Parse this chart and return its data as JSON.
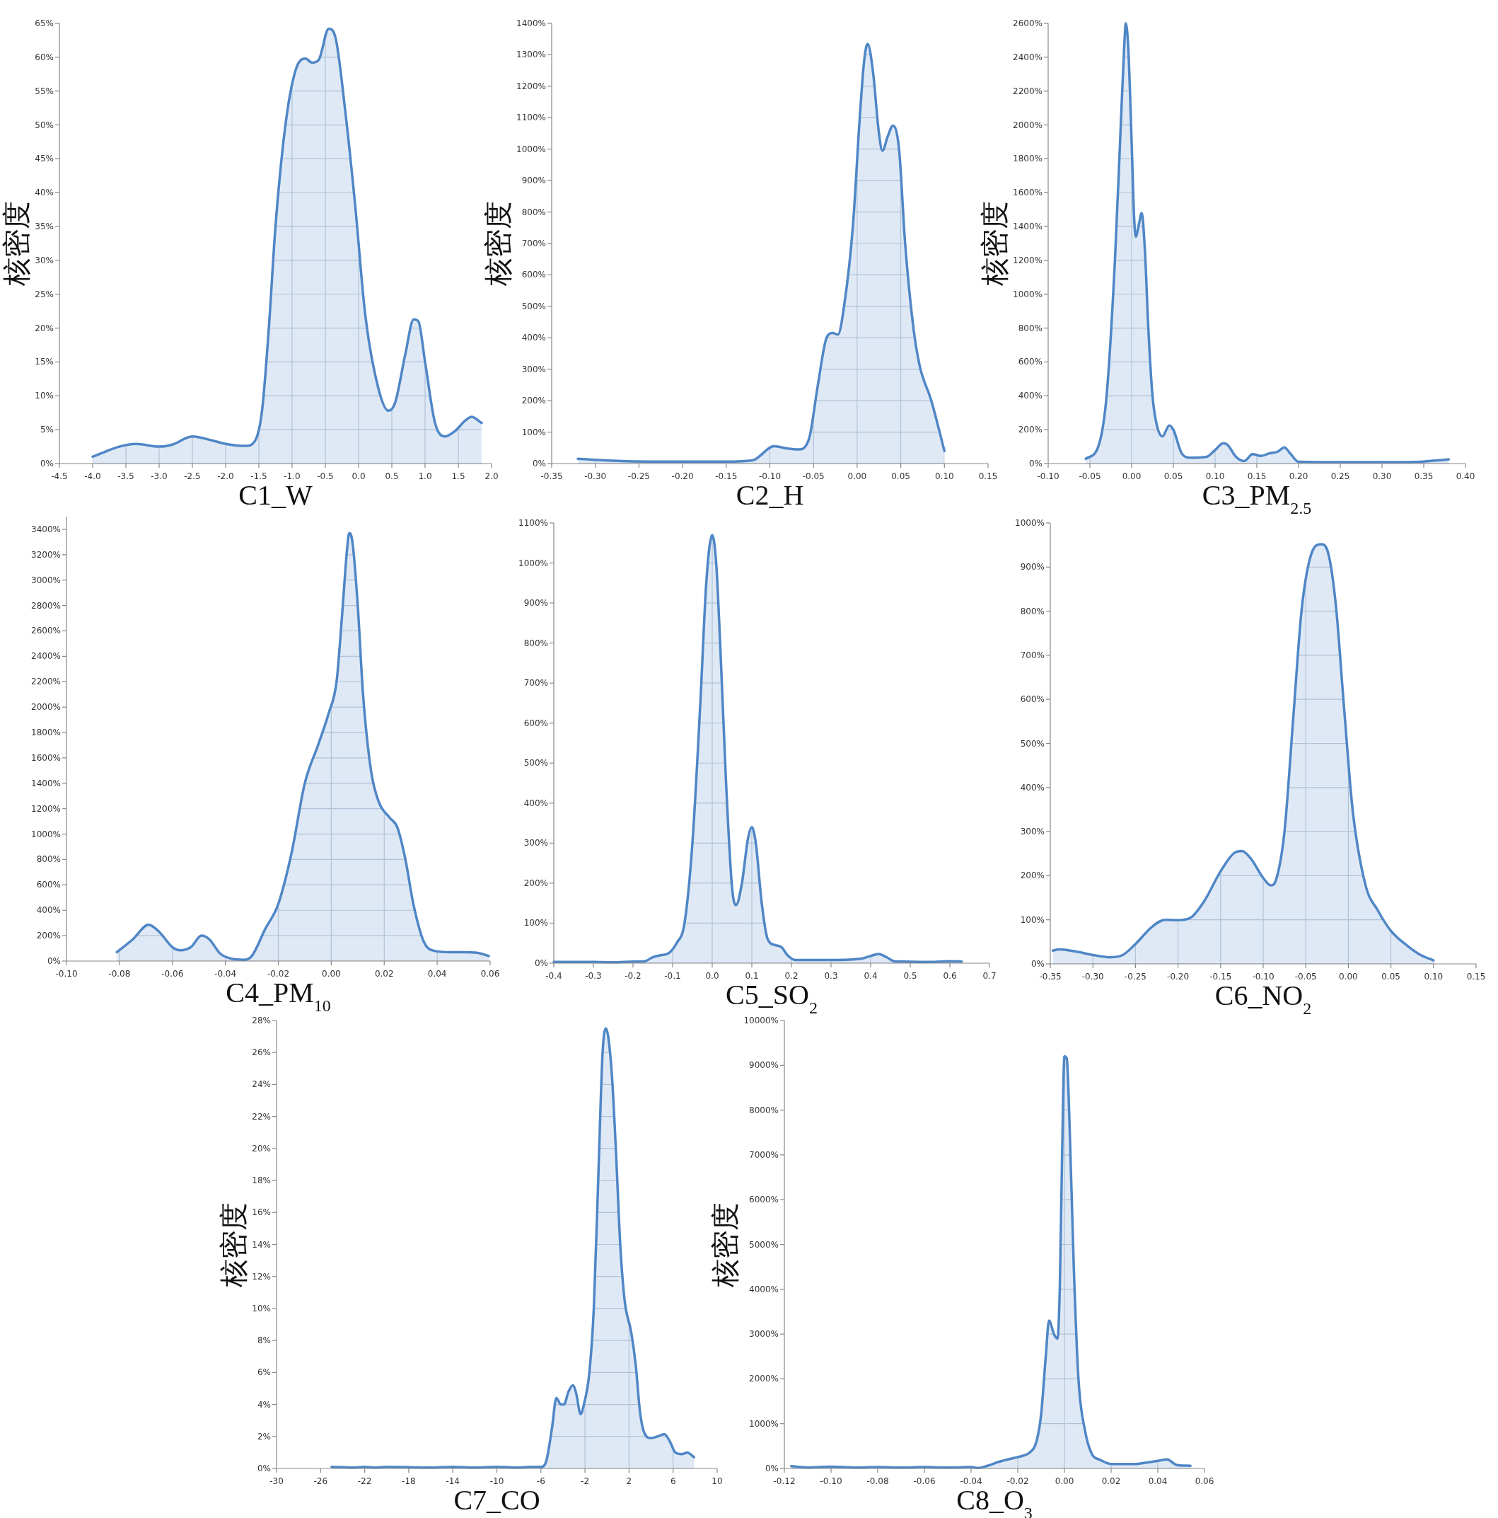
{
  "chart_data": [
    {
      "type": "area",
      "xlabel": "C1_W",
      "ylabel": "核密度",
      "grid": true,
      "xlim": [
        -4.5,
        2.0
      ],
      "ylim": [
        0,
        65
      ],
      "xticks": [
        -4.5,
        {
          "value": -4.0,
          "label": "-4.0"
        },
        -3.5,
        {
          "value": -3.0,
          "label": "-3.0"
        },
        -2.5,
        {
          "value": -2.0,
          "label": "-2.0"
        },
        -1.5,
        {
          "value": -1.0,
          "label": "-1.0"
        },
        -0.5,
        {
          "value": 0,
          "label": "0.0"
        },
        0.5,
        {
          "value": 1.0,
          "label": "1.0"
        },
        1.5,
        {
          "value": 2.0,
          "label": "2.0"
        }
      ],
      "yticks": [
        {
          "value": 0,
          "label": "0%"
        },
        {
          "value": 5,
          "label": "5%"
        },
        {
          "value": 10,
          "label": "10%"
        },
        {
          "value": 15,
          "label": "15%"
        },
        {
          "value": 20,
          "label": "20%"
        },
        {
          "value": 25,
          "label": "25%"
        },
        {
          "value": 30,
          "label": "30%"
        },
        {
          "value": 35,
          "label": "35%"
        },
        {
          "value": 40,
          "label": "40%"
        },
        {
          "value": 45,
          "label": "45%"
        },
        {
          "value": 50,
          "label": "50%"
        },
        {
          "value": 55,
          "label": "55%"
        },
        {
          "value": 60,
          "label": "60%"
        },
        {
          "value": 65,
          "label": "65%"
        }
      ],
      "x": [
        -4.0,
        -3.8,
        -3.6,
        -3.35,
        -3.0,
        -2.8,
        -2.5,
        -2.2,
        -2.0,
        -1.7,
        -1.55,
        -1.45,
        -1.35,
        -1.25,
        -1.1,
        -0.95,
        -0.8,
        -0.7,
        -0.6,
        -0.45,
        -0.35,
        -0.2,
        -0.05,
        0.1,
        0.3,
        0.45,
        0.55,
        0.7,
        0.83,
        0.9,
        1.0,
        1.15,
        1.3,
        1.45,
        1.6,
        1.7,
        1.85
      ],
      "series": [
        {
          "color": "#4f86c6",
          "values": [
            1.0,
            1.8,
            2.5,
            2.9,
            2.5,
            2.8,
            4.0,
            3.4,
            2.9,
            2.6,
            3.5,
            8,
            20,
            35,
            50,
            58,
            59.8,
            59.2,
            59.6,
            64.2,
            63,
            52,
            38,
            22,
            11,
            7.8,
            9,
            16,
            21.3,
            21,
            15,
            6,
            4,
            4.8,
            6.3,
            6.9,
            6.0
          ]
        }
      ]
    },
    {
      "type": "area",
      "xlabel": "C2_H",
      "ylabel": "核密度",
      "grid": true,
      "xlim": [
        -0.35,
        0.15
      ],
      "ylim": [
        0,
        1400
      ],
      "xticks": [
        -0.35,
        {
          "value": -0.3,
          "label": "-0.30"
        },
        -0.25,
        {
          "value": -0.2,
          "label": "-0.20"
        },
        -0.15,
        {
          "value": -0.1,
          "label": "-0.10"
        },
        -0.05,
        {
          "value": 0,
          "label": "0.00"
        },
        0.05,
        {
          "value": 0.1,
          "label": "0.10"
        },
        0.15
      ],
      "yticks": [
        {
          "value": 0,
          "label": "0%"
        },
        {
          "value": 100,
          "label": "100%"
        },
        {
          "value": 200,
          "label": "200%"
        },
        {
          "value": 300,
          "label": "300%"
        },
        {
          "value": 400,
          "label": "400%"
        },
        {
          "value": 500,
          "label": "500%"
        },
        {
          "value": 600,
          "label": "600%"
        },
        {
          "value": 700,
          "label": "700%"
        },
        {
          "value": 800,
          "label": "800%"
        },
        {
          "value": 900,
          "label": "900%"
        },
        {
          "value": 1000,
          "label": "1000%"
        },
        {
          "value": 1100,
          "label": "1100%"
        },
        {
          "value": 1200,
          "label": "1200%"
        },
        {
          "value": 1300,
          "label": "1300%"
        },
        {
          "value": 1400,
          "label": "1400%"
        }
      ],
      "x": [
        -0.32,
        -0.3,
        -0.27,
        -0.2,
        -0.15,
        -0.12,
        -0.095,
        -0.08,
        -0.067,
        -0.055,
        -0.045,
        -0.035,
        -0.028,
        -0.022,
        -0.015,
        -0.005,
        0.003,
        0.008,
        0.012,
        0.018,
        0.025,
        0.029,
        0.035,
        0.041,
        0.048,
        0.055,
        0.065,
        0.072,
        0.085,
        0.1
      ],
      "series": [
        {
          "color": "#4f86c6",
          "values": [
            15,
            12,
            8,
            6,
            6,
            10,
            55,
            48,
            45,
            80,
            250,
            400,
            415,
            410,
            500,
            750,
            1100,
            1280,
            1335,
            1250,
            1050,
            995,
            1040,
            1075,
            1000,
            700,
            420,
            307,
            200,
            40
          ]
        }
      ]
    },
    {
      "type": "area",
      "xlabel": "C3_PM$_{2.5}$",
      "ylabel": "核密度",
      "grid": true,
      "xlim": [
        -0.1,
        0.4
      ],
      "ylim": [
        0,
        2600
      ],
      "xticks": [
        {
          "value": -0.1,
          "label": "-0.10"
        },
        -0.05,
        {
          "value": 0,
          "label": "0.00"
        },
        0.05,
        {
          "value": 0.1,
          "label": "0.10"
        },
        0.15,
        {
          "value": 0.2,
          "label": "0.20"
        },
        0.25,
        {
          "value": 0.3,
          "label": "0.30"
        },
        0.35,
        {
          "value": 0.4,
          "label": "0.40"
        }
      ],
      "yticks": [
        {
          "value": 0,
          "label": "0%"
        },
        {
          "value": 200,
          "label": "200%"
        },
        {
          "value": 400,
          "label": "400%"
        },
        {
          "value": 600,
          "label": "600%"
        },
        {
          "value": 800,
          "label": "800%"
        },
        {
          "value": 1000,
          "label": "1000%"
        },
        {
          "value": 1200,
          "label": "1200%"
        },
        {
          "value": 1400,
          "label": "1400%"
        },
        {
          "value": 1600,
          "label": "1600%"
        },
        {
          "value": 1800,
          "label": "1800%"
        },
        {
          "value": 2000,
          "label": "2000%"
        },
        {
          "value": 2200,
          "label": "2200%"
        },
        {
          "value": 2400,
          "label": "2400%"
        },
        {
          "value": 2600,
          "label": "2600%"
        }
      ],
      "x": [
        -0.055,
        -0.04,
        -0.03,
        -0.02,
        -0.013,
        -0.009,
        -0.007,
        -0.004,
        0.0,
        0.003,
        0.005,
        0.009,
        0.012,
        0.016,
        0.02,
        0.025,
        0.03,
        0.037,
        0.045,
        0.05,
        0.06,
        0.07,
        0.09,
        0.1,
        0.11,
        0.115,
        0.125,
        0.135,
        0.145,
        0.155,
        0.165,
        0.175,
        0.183,
        0.19,
        0.2,
        0.25,
        0.3,
        0.35,
        0.37,
        0.38
      ],
      "series": [
        {
          "color": "#4f86c6",
          "values": [
            28,
            100,
            400,
            1200,
            2000,
            2450,
            2600,
            2450,
            1900,
            1450,
            1340,
            1420,
            1480,
            1250,
            800,
            400,
            230,
            160,
            225,
            200,
            60,
            35,
            40,
            80,
            120,
            110,
            40,
            15,
            55,
            45,
            60,
            70,
            95,
            60,
            10,
            8,
            8,
            12,
            20,
            25
          ]
        }
      ]
    },
    {
      "type": "area",
      "xlabel": "C4_PM$_{10}$",
      "grid": true,
      "xlim": [
        -0.1,
        0.06
      ],
      "ylim": [
        0,
        3500
      ],
      "xticks": [
        {
          "value": -0.1,
          "label": "-0.10"
        },
        -0.08,
        -0.06,
        -0.04,
        -0.02,
        {
          "value": 0,
          "label": "0.00"
        },
        0.02,
        0.04,
        0.06
      ],
      "yticks": [
        {
          "value": 0,
          "label": "0%"
        },
        {
          "value": 200,
          "label": "200%"
        },
        {
          "value": 400,
          "label": "400%"
        },
        {
          "value": 600,
          "label": "600%"
        },
        {
          "value": 800,
          "label": "800%"
        },
        {
          "value": 1000,
          "label": "1000%"
        },
        {
          "value": 1200,
          "label": "1200%"
        },
        {
          "value": 1400,
          "label": "1400%"
        },
        {
          "value": 1600,
          "label": "1600%"
        },
        {
          "value": 1800,
          "label": "1800%"
        },
        {
          "value": 2000,
          "label": "2000%"
        },
        {
          "value": 2200,
          "label": "2200%"
        },
        {
          "value": 2400,
          "label": "2400%"
        },
        {
          "value": 2600,
          "label": "2600%"
        },
        {
          "value": 2800,
          "label": "2800%"
        },
        {
          "value": 3000,
          "label": "3000%"
        },
        {
          "value": 3200,
          "label": "3200%"
        },
        {
          "value": 3400,
          "label": "3400%"
        }
      ],
      "x": [
        -0.081,
        -0.075,
        -0.069,
        -0.065,
        -0.06,
        -0.057,
        -0.053,
        -0.049,
        -0.046,
        -0.042,
        -0.038,
        -0.033,
        -0.03,
        -0.025,
        -0.02,
        -0.015,
        -0.01,
        -0.005,
        -0.001,
        0.002,
        0.004,
        0.006,
        0.0068,
        0.008,
        0.01,
        0.012,
        0.015,
        0.018,
        0.022,
        0.025,
        0.028,
        0.031,
        0.035,
        0.039,
        0.045,
        0.05,
        0.055,
        0.0595
      ],
      "series": [
        {
          "color": "#4f86c6",
          "values": [
            70,
            170,
            285,
            230,
            110,
            85,
            110,
            200,
            170,
            60,
            20,
            10,
            40,
            250,
            450,
            850,
            1400,
            1700,
            1950,
            2200,
            2700,
            3250,
            3370,
            3300,
            2800,
            2100,
            1500,
            1250,
            1130,
            1050,
            800,
            450,
            150,
            80,
            70,
            70,
            65,
            40
          ]
        }
      ]
    },
    {
      "type": "area",
      "xlabel": "C5_SO$_{2}$",
      "grid": true,
      "xlim": [
        -0.4,
        0.7
      ],
      "ylim": [
        0,
        1100
      ],
      "xticks": [
        -0.4,
        -0.3,
        -0.2,
        -0.1,
        {
          "value": 0,
          "label": "0.0"
        },
        0.1,
        0.2,
        0.3,
        0.4,
        0.5,
        0.6,
        0.7
      ],
      "yticks": [
        {
          "value": 0,
          "label": "0%"
        },
        {
          "value": 100,
          "label": "100%"
        },
        {
          "value": 200,
          "label": "200%"
        },
        {
          "value": 300,
          "label": "300%"
        },
        {
          "value": 400,
          "label": "400%"
        },
        {
          "value": 500,
          "label": "500%"
        },
        {
          "value": 600,
          "label": "600%"
        },
        {
          "value": 700,
          "label": "700%"
        },
        {
          "value": 800,
          "label": "800%"
        },
        {
          "value": 900,
          "label": "900%"
        },
        {
          "value": 1000,
          "label": "1000%"
        },
        {
          "value": 1100,
          "label": "1100%"
        }
      ],
      "x": [
        -0.4,
        -0.3,
        -0.25,
        -0.2,
        -0.17,
        -0.15,
        -0.13,
        -0.11,
        -0.09,
        -0.07,
        -0.05,
        -0.03,
        -0.015,
        0.0,
        0.01,
        0.02,
        0.035,
        0.05,
        0.06,
        0.075,
        0.09,
        0.1,
        0.11,
        0.125,
        0.14,
        0.16,
        0.175,
        0.19,
        0.21,
        0.3,
        0.38,
        0.4,
        0.42,
        0.44,
        0.46,
        0.55,
        0.6,
        0.63
      ],
      "series": [
        {
          "color": "#4f86c6",
          "values": [
            3,
            3,
            2,
            4,
            5,
            15,
            20,
            25,
            50,
            100,
            300,
            650,
            950,
            1070,
            1000,
            800,
            450,
            190,
            145,
            200,
            310,
            340,
            300,
            150,
            60,
            45,
            40,
            20,
            8,
            8,
            12,
            18,
            23,
            15,
            5,
            3,
            5,
            4
          ]
        }
      ]
    },
    {
      "type": "area",
      "xlabel": "C6_NO$_{2}$",
      "grid": true,
      "xlim": [
        -0.35,
        0.15
      ],
      "ylim": [
        0,
        1000
      ],
      "xticks": [
        -0.35,
        {
          "value": -0.3,
          "label": "-0.30"
        },
        -0.25,
        {
          "value": -0.2,
          "label": "-0.20"
        },
        -0.15,
        {
          "value": -0.1,
          "label": "-0.10"
        },
        -0.05,
        {
          "value": 0,
          "label": "0.00"
        },
        0.05,
        {
          "value": 0.1,
          "label": "0.10"
        },
        0.15
      ],
      "yticks": [
        {
          "value": 0,
          "label": "0%"
        },
        {
          "value": 100,
          "label": "100%"
        },
        {
          "value": 200,
          "label": "200%"
        },
        {
          "value": 300,
          "label": "300%"
        },
        {
          "value": 400,
          "label": "400%"
        },
        {
          "value": 500,
          "label": "500%"
        },
        {
          "value": 600,
          "label": "600%"
        },
        {
          "value": 700,
          "label": "700%"
        },
        {
          "value": 800,
          "label": "800%"
        },
        {
          "value": 900,
          "label": "900%"
        },
        {
          "value": 1000,
          "label": "1000%"
        }
      ],
      "x": [
        -0.347,
        -0.34,
        -0.32,
        -0.3,
        -0.28,
        -0.265,
        -0.25,
        -0.23,
        -0.215,
        -0.2,
        -0.185,
        -0.17,
        -0.15,
        -0.135,
        -0.125,
        -0.115,
        -0.1,
        -0.091,
        -0.085,
        -0.075,
        -0.065,
        -0.055,
        -0.045,
        -0.032,
        -0.025,
        -0.015,
        -0.005,
        0.005,
        0.02,
        0.035,
        0.05,
        0.07,
        0.085,
        0.1
      ],
      "series": [
        {
          "color": "#4f86c6",
          "values": [
            30,
            33,
            28,
            20,
            15,
            20,
            45,
            85,
            100,
            99,
            105,
            140,
            210,
            250,
            256,
            240,
            195,
            178,
            190,
            300,
            550,
            800,
            920,
            952,
            940,
            820,
            580,
            350,
            180,
            120,
            75,
            40,
            20,
            8
          ]
        }
      ]
    },
    {
      "type": "area",
      "xlabel": "C7_CO",
      "ylabel": "核密度",
      "grid": true,
      "xlim": [
        -30,
        10
      ],
      "ylim": [
        0,
        28
      ],
      "xticks": [
        -30,
        -26,
        -22,
        -18,
        -14,
        -10,
        -6,
        -2,
        2,
        6,
        10
      ],
      "yticks": [
        {
          "value": 0,
          "label": "0%"
        },
        {
          "value": 2,
          "label": "2%"
        },
        {
          "value": 4,
          "label": "4%"
        },
        {
          "value": 6,
          "label": "6%"
        },
        {
          "value": 8,
          "label": "8%"
        },
        {
          "value": 10,
          "label": "10%"
        },
        {
          "value": 12,
          "label": "12%"
        },
        {
          "value": 14,
          "label": "14%"
        },
        {
          "value": 16,
          "label": "16%"
        },
        {
          "value": 18,
          "label": "18%"
        },
        {
          "value": 20,
          "label": "20%"
        },
        {
          "value": 22,
          "label": "22%"
        },
        {
          "value": 24,
          "label": "24%"
        },
        {
          "value": 26,
          "label": "26%"
        },
        {
          "value": 28,
          "label": "28%"
        }
      ],
      "x": [
        -25,
        -24,
        -23,
        -22,
        -21,
        -20,
        -18,
        -16,
        -14,
        -12,
        -10,
        -8,
        -7,
        -6,
        -5.5,
        -5,
        -4.6,
        -4.2,
        -3.9,
        -3.5,
        -3.1,
        -2.8,
        -2.4,
        -2.1,
        -1.6,
        -1.2,
        -0.8,
        -0.4,
        -0.1,
        0.4,
        0.8,
        1.2,
        1.6,
        2.2,
        2.6,
        3.0,
        3.4,
        4.0,
        4.6,
        5.2,
        5.7,
        6.2,
        6.8,
        7.3,
        7.9
      ],
      "series": [
        {
          "color": "#4f86c6",
          "values": [
            0.1,
            0.08,
            0.05,
            0.1,
            0.05,
            0.1,
            0.08,
            0.05,
            0.1,
            0.05,
            0.1,
            0.05,
            0.1,
            0.1,
            0.5,
            2.5,
            4.4,
            4.0,
            4.0,
            4.8,
            5.2,
            4.7,
            3.4,
            4,
            6,
            10,
            18,
            26,
            27.5,
            25,
            20,
            14,
            10.5,
            8.5,
            6.5,
            3.5,
            2.2,
            1.9,
            2.0,
            2.15,
            1.7,
            1.0,
            0.9,
            1.0,
            0.7
          ]
        }
      ]
    },
    {
      "type": "area",
      "xlabel": "C8_O$_{3}$",
      "ylabel": "核密度",
      "grid": true,
      "xlim": [
        -0.12,
        0.06
      ],
      "ylim": [
        0,
        10000
      ],
      "xticks": [
        -0.12,
        {
          "value": -0.1,
          "label": "-0.10"
        },
        -0.08,
        -0.06,
        -0.04,
        -0.02,
        {
          "value": 0,
          "label": "0.00"
        },
        0.02,
        0.04,
        0.06
      ],
      "yticks": [
        {
          "value": 0,
          "label": "0%"
        },
        {
          "value": 1000,
          "label": "1000%"
        },
        {
          "value": 2000,
          "label": "2000%"
        },
        {
          "value": 3000,
          "label": "3000%"
        },
        {
          "value": 4000,
          "label": "4000%"
        },
        {
          "value": 5000,
          "label": "5000%"
        },
        {
          "value": 6000,
          "label": "6000%"
        },
        {
          "value": 7000,
          "label": "7000%"
        },
        {
          "value": 8000,
          "label": "8000%"
        },
        {
          "value": 9000,
          "label": "9000%"
        },
        {
          "value": 10000,
          "label": "10000%"
        }
      ],
      "x": [
        -0.117,
        -0.11,
        -0.1,
        -0.09,
        -0.08,
        -0.07,
        -0.06,
        -0.05,
        -0.04,
        -0.037,
        -0.033,
        -0.028,
        -0.022,
        -0.018,
        -0.015,
        -0.012,
        -0.01,
        -0.008,
        -0.0066,
        -0.0045,
        -0.003,
        -0.002,
        -0.001,
        0.0,
        0.001,
        0.002,
        0.004,
        0.006,
        0.009,
        0.012,
        0.015,
        0.02,
        0.03,
        0.035,
        0.04,
        0.044,
        0.048,
        0.054
      ],
      "series": [
        {
          "color": "#4f86c6",
          "values": [
            50,
            20,
            40,
            20,
            30,
            20,
            30,
            20,
            30,
            10,
            60,
            150,
            230,
            280,
            350,
            600,
            1200,
            2500,
            3300,
            3000,
            2900,
            4000,
            7000,
            9200,
            9150,
            8000,
            4500,
            2000,
            800,
            300,
            200,
            100,
            100,
            130,
            170,
            200,
            80,
            60
          ]
        }
      ]
    }
  ]
}
